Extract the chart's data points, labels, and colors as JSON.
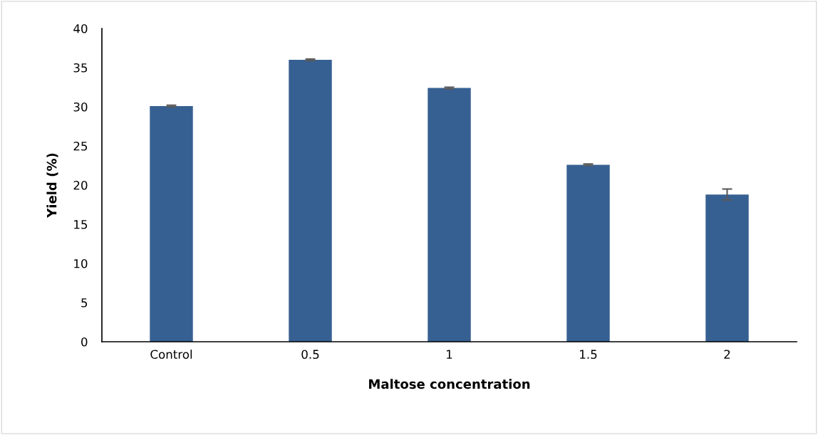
{
  "chart_data": {
    "type": "bar",
    "xlabel": "Maltose concentration",
    "ylabel": "Yield (%)",
    "categories": [
      "Control",
      "0.5",
      "1",
      "1.5",
      "2"
    ],
    "values": [
      30.1,
      36.0,
      32.4,
      22.6,
      18.8
    ],
    "errors": [
      0.1,
      0.1,
      0.1,
      0.1,
      0.7
    ],
    "color": "#376092",
    "ylim": [
      0,
      40
    ],
    "yticks": [
      0,
      5,
      10,
      15,
      20,
      25,
      30,
      35,
      40
    ],
    "grid": false
  }
}
